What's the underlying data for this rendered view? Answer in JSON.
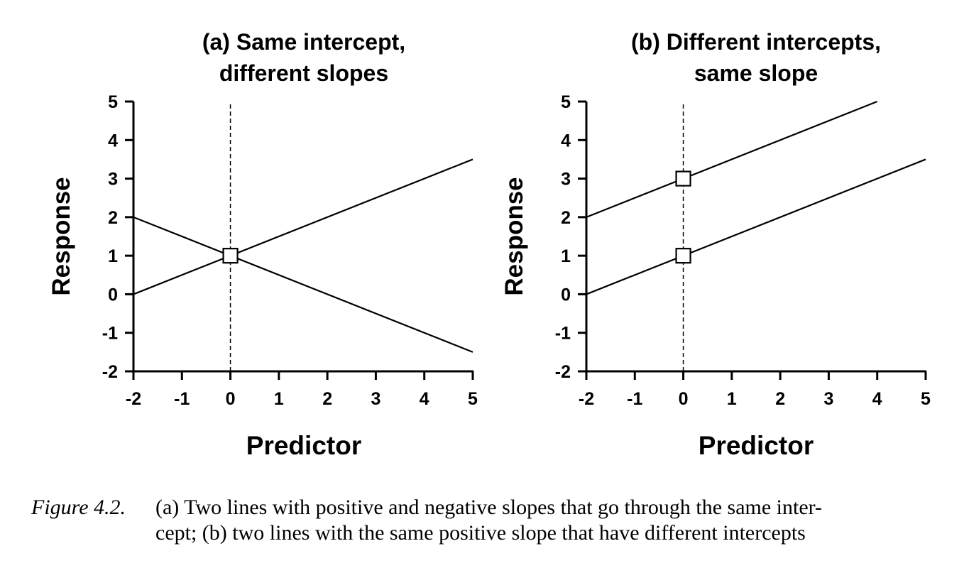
{
  "chart_data": [
    {
      "type": "line",
      "title_lines": [
        "(a) Same intercept,",
        "different slopes"
      ],
      "xlabel": "Predictor",
      "ylabel": "Response",
      "xlim": [
        -2,
        5
      ],
      "ylim": [
        -2,
        5
      ],
      "xticks": [
        "-2",
        "-1",
        "0",
        "1",
        "2",
        "3",
        "4",
        "5"
      ],
      "yticks": [
        "-2",
        "-1",
        "0",
        "1",
        "2",
        "3",
        "4",
        "5"
      ],
      "grid": false,
      "reference_line": {
        "x": 0,
        "style": "dashed"
      },
      "series": [
        {
          "x": [
            -2,
            5
          ],
          "y": [
            0,
            3.5
          ]
        },
        {
          "x": [
            -2,
            5
          ],
          "y": [
            2,
            -1.5
          ]
        }
      ],
      "markers": [
        {
          "x": 0,
          "y": 1,
          "shape": "square"
        }
      ]
    },
    {
      "type": "line",
      "title_lines": [
        "(b) Different intercepts,",
        "same slope"
      ],
      "xlabel": "Predictor",
      "ylabel": "Response",
      "xlim": [
        -2,
        5
      ],
      "ylim": [
        -2,
        5
      ],
      "xticks": [
        "-2",
        "-1",
        "0",
        "1",
        "2",
        "3",
        "4",
        "5"
      ],
      "yticks": [
        "-2",
        "-1",
        "0",
        "1",
        "2",
        "3",
        "4",
        "5"
      ],
      "grid": false,
      "reference_line": {
        "x": 0,
        "style": "dashed"
      },
      "series": [
        {
          "x": [
            -2,
            4
          ],
          "y": [
            2,
            5
          ]
        },
        {
          "x": [
            -2,
            5
          ],
          "y": [
            0,
            3.5
          ]
        }
      ],
      "markers": [
        {
          "x": 0,
          "y": 3,
          "shape": "square"
        },
        {
          "x": 0,
          "y": 1,
          "shape": "square"
        }
      ]
    }
  ],
  "caption": {
    "label": "Figure 4.2.",
    "line1": "(a) Two lines with positive and negative slopes that go through the same inter-",
    "line2": "cept; (b) two lines with the same positive slope that have different intercepts"
  }
}
